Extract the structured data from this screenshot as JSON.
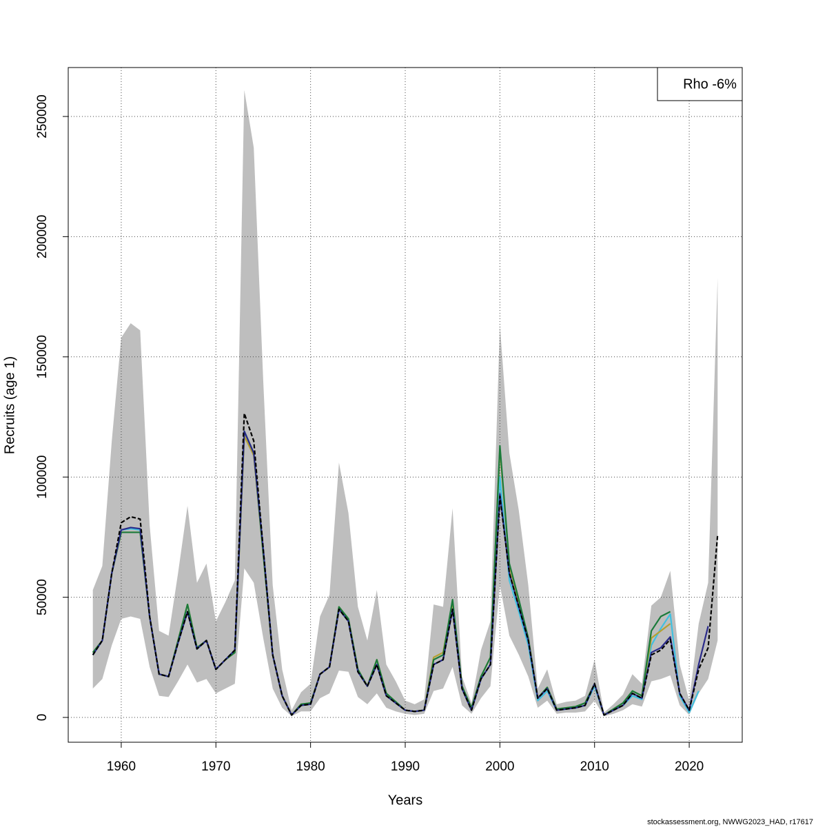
{
  "chart_data": {
    "type": "line",
    "xlabel": "Years",
    "ylabel": "Recruits (age 1)",
    "annotation": "Rho -6%",
    "annotation_corner": "top-right",
    "caption": "stockassessment.org, NWWG2023_HAD, r17617",
    "xlim": [
      1954.4,
      2025.6
    ],
    "ylim": [
      -10321,
      270355
    ],
    "xticks": [
      1960,
      1970,
      1980,
      1990,
      2000,
      2010,
      2020
    ],
    "yticks": [
      0,
      50000,
      100000,
      150000,
      200000,
      250000
    ],
    "grid": true,
    "x": [
      1957,
      1958,
      1959,
      1960,
      1961,
      1962,
      1963,
      1964,
      1965,
      1966,
      1967,
      1968,
      1969,
      1970,
      1971,
      1972,
      1973,
      1974,
      1975,
      1976,
      1977,
      1978,
      1979,
      1980,
      1981,
      1982,
      1983,
      1984,
      1985,
      1986,
      1987,
      1988,
      1989,
      1990,
      1991,
      1992,
      1993,
      1994,
      1995,
      1996,
      1997,
      1998,
      1999,
      2000,
      2001,
      2002,
      2003,
      2004,
      2005,
      2006,
      2007,
      2008,
      2009,
      2010,
      2011,
      2012,
      2013,
      2014,
      2015,
      2016,
      2017,
      2018,
      2019,
      2020,
      2021,
      2022,
      2023
    ],
    "band": {
      "color": "#bebebe",
      "upper": [
        53000,
        63000,
        115000,
        158000,
        164000,
        161000,
        80000,
        36000,
        34000,
        60000,
        88000,
        56000,
        64000,
        40000,
        48000,
        57000,
        261000,
        237000,
        140000,
        55000,
        20000,
        3000,
        10500,
        14000,
        42000,
        51000,
        106000,
        85000,
        46000,
        32000,
        53000,
        22000,
        15000,
        7000,
        5500,
        7500,
        47000,
        46000,
        87000,
        17000,
        6000,
        28000,
        40000,
        163000,
        110000,
        86000,
        55000,
        12000,
        20000,
        5500,
        6500,
        7000,
        9000,
        24000,
        2000,
        5500,
        9500,
        18000,
        14000,
        46500,
        50000,
        61000,
        22000,
        7000,
        39000,
        56000,
        183000
      ],
      "lower": [
        12000,
        16000,
        30000,
        41000,
        42000,
        41000,
        21000,
        9000,
        8500,
        15000,
        22000,
        14500,
        16000,
        10000,
        12000,
        14000,
        62000,
        56000,
        33000,
        12000,
        4000,
        500,
        2500,
        2500,
        8000,
        10000,
        19500,
        19000,
        8500,
        5500,
        10000,
        4000,
        2500,
        1500,
        1000,
        1500,
        11000,
        12000,
        21000,
        5000,
        1500,
        8000,
        13000,
        55000,
        34000,
        26000,
        17000,
        4000,
        7000,
        1500,
        2000,
        2000,
        2500,
        7000,
        500,
        1500,
        3000,
        5500,
        4500,
        15000,
        16000,
        17500,
        5000,
        1000,
        10000,
        16000,
        32000
      ]
    },
    "series": [
      {
        "color": "#40c0e0",
        "values": [
          26000,
          32000,
          60000,
          78000,
          78500,
          78000,
          42000,
          18000,
          17000,
          31000,
          44000,
          28500,
          32000,
          20000,
          24000,
          28000,
          119000,
          110000,
          70000,
          26000,
          9000,
          1000,
          5000,
          5500,
          18000,
          21000,
          45000,
          40000,
          19000,
          13000,
          22000,
          9000,
          6000,
          3000,
          2500,
          3000,
          22000,
          24000,
          45000,
          12000,
          3000,
          16000,
          22000,
          100000,
          57000,
          44000,
          30000,
          7000,
          11000,
          3000,
          3500,
          4000,
          5000,
          13000,
          1000,
          3000,
          5000,
          9000,
          7500,
          30000,
          37000,
          43000,
          9000,
          2000,
          11000,
          null,
          null
        ]
      },
      {
        "color": "#b5a030",
        "values": [
          27000,
          32000,
          60000,
          77000,
          77000,
          77000,
          42000,
          18000,
          17000,
          32000,
          47000,
          29000,
          32000,
          20000,
          24000,
          27000,
          117000,
          109000,
          68000,
          26000,
          9000,
          1000,
          5500,
          6000,
          18000,
          21000,
          46000,
          41000,
          20000,
          13000,
          24000,
          10000,
          6500,
          3000,
          2500,
          3000,
          25000,
          27000,
          48000,
          13000,
          4000,
          17000,
          25000,
          112000,
          63000,
          48000,
          33000,
          8000,
          12500,
          3500,
          4000,
          4500,
          6000,
          14000,
          1000,
          3500,
          6000,
          11000,
          9000,
          33000,
          36000,
          39000,
          null,
          null,
          null,
          null,
          null
        ]
      },
      {
        "color": "#1a7a3a",
        "values": [
          27000,
          32000,
          60000,
          77000,
          77000,
          77000,
          42000,
          18000,
          17000,
          32000,
          47000,
          29000,
          32000,
          20000,
          24000,
          27000,
          119000,
          110000,
          68000,
          26000,
          9000,
          1000,
          5500,
          6000,
          18000,
          21000,
          46000,
          41000,
          20000,
          13000,
          24000,
          10000,
          6500,
          3000,
          2500,
          3000,
          24000,
          26000,
          49000,
          13000,
          4000,
          17000,
          25000,
          113000,
          64000,
          49000,
          33000,
          8000,
          12500,
          3500,
          4000,
          4500,
          6000,
          14000,
          1000,
          3500,
          6000,
          11000,
          9000,
          36000,
          42000,
          44000,
          null,
          null,
          null,
          null,
          null
        ]
      },
      {
        "color": "#2a2a8a",
        "values": [
          26000,
          32000,
          60000,
          78000,
          79000,
          78500,
          42000,
          18000,
          17000,
          31000,
          44000,
          28500,
          32000,
          20000,
          24000,
          28000,
          119000,
          110000,
          70000,
          26000,
          9000,
          1000,
          5000,
          5500,
          18000,
          21000,
          45000,
          40000,
          19000,
          13000,
          22000,
          9000,
          6000,
          3000,
          2500,
          3000,
          22000,
          24000,
          45000,
          12000,
          3000,
          16000,
          22000,
          93000,
          60000,
          46000,
          32000,
          8000,
          12000,
          3000,
          3500,
          4000,
          5000,
          14000,
          1000,
          3000,
          5000,
          10000,
          8000,
          27000,
          29000,
          33500,
          10000,
          3000,
          22000,
          38000,
          null
        ]
      },
      {
        "color": "#000000",
        "dashed": true,
        "values": [
          26000,
          32000,
          60000,
          81000,
          83500,
          82500,
          42000,
          18000,
          17000,
          31000,
          44000,
          28500,
          32000,
          20000,
          24000,
          28000,
          126500,
          115000,
          70000,
          26000,
          9000,
          1000,
          5000,
          5500,
          18000,
          21000,
          45000,
          40000,
          19000,
          13000,
          22000,
          9000,
          6000,
          3000,
          2500,
          3000,
          22000,
          24000,
          45000,
          12000,
          3000,
          16000,
          22000,
          92000,
          60000,
          46000,
          32000,
          8000,
          12000,
          3000,
          3500,
          4000,
          5000,
          14000,
          1000,
          3000,
          5000,
          10000,
          8000,
          26000,
          28000,
          32500,
          10000,
          3000,
          20000,
          29000,
          76000
        ]
      }
    ]
  }
}
